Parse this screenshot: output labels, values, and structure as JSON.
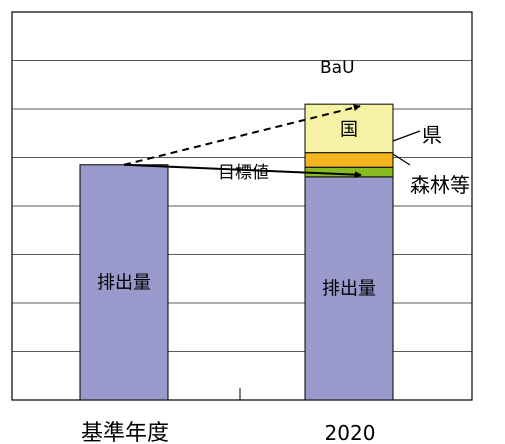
{
  "chart_data": {
    "type": "bar",
    "stacked": true,
    "categories": [
      "基準年度",
      "2020"
    ],
    "ylim": [
      0,
      8
    ],
    "grid": true,
    "series": [
      {
        "name": "排出量",
        "color": "#9999cc",
        "values": [
          4.85,
          4.6
        ]
      },
      {
        "name": "森林等",
        "color": "#88bb22",
        "values": [
          0,
          0.2
        ]
      },
      {
        "name": "県",
        "color": "#f4b51e",
        "values": [
          0,
          0.3
        ]
      },
      {
        "name": "国",
        "color": "#f5f2a6",
        "values": [
          0,
          1.0
        ]
      }
    ],
    "annotations": {
      "target_label": "目標値",
      "target_value": 4.6,
      "bau_label": "BaU",
      "bau_value": 6.1
    }
  }
}
